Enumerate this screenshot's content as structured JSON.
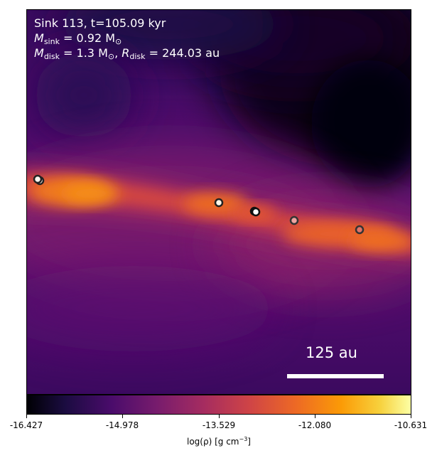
{
  "annotation": {
    "line1": "Sink 113, t=105.09 kyr",
    "msink_symbol": "M",
    "msink_sub": "sink",
    "msink_value": " = 0.92 M",
    "msink_unit_sub": "⊙",
    "mdisk_symbol": "M",
    "mdisk_sub": "disk",
    "mdisk_value": " = 1.3 M",
    "mdisk_unit_sub": "⊙",
    "rdisk_sep": ", ",
    "rdisk_symbol": "R",
    "rdisk_sub": "disk",
    "rdisk_value": " = 244.03 au"
  },
  "scalebar": {
    "label": "125 au"
  },
  "colorbar": {
    "colormap": "inferno",
    "ticks": [
      "-16.427",
      "-14.978",
      "-13.529",
      "-12.080",
      "-10.631"
    ],
    "label_prefix": "log(ρ) [g cm",
    "label_sup": "−3",
    "label_suffix": "]"
  },
  "sinks": [
    {
      "fill": "#f3e9e0"
    },
    {
      "fill": "#fbf6ef"
    },
    {
      "fill": "#fff8ea"
    },
    {
      "fill": "#f2eeea"
    },
    {
      "fill": "#ffffff"
    },
    {
      "fill": "#f0a4a0"
    },
    {
      "fill": "#e07468"
    }
  ]
}
